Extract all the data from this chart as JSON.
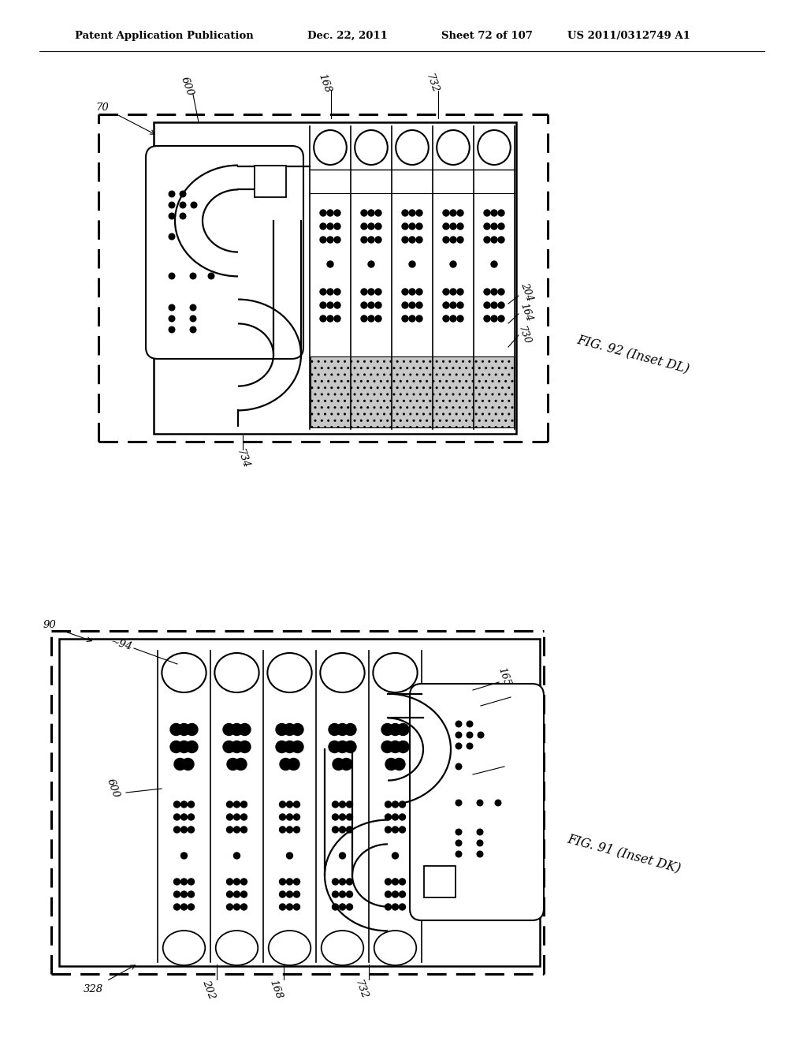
{
  "bg_color": "#ffffff",
  "header_text": "Patent Application Publication",
  "header_date": "Dec. 22, 2011",
  "header_sheet": "Sheet 72 of 107",
  "header_patent": "US 2011/0312749 A1",
  "fig92_label": "FIG. 92 (Inset DL)",
  "fig91_label": "FIG. 91 (Inset DK)"
}
